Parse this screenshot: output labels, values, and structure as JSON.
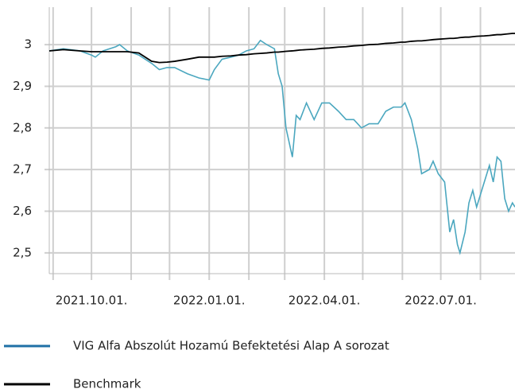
{
  "chart_data": {
    "type": "line",
    "x": [
      "2021-08-29",
      "2021-09-09",
      "2021-09-22",
      "2021-10-01",
      "2021-10-04",
      "2021-10-10",
      "2021-10-20",
      "2021-10-23",
      "2021-10-29",
      "2021-11-07",
      "2021-11-17",
      "2021-11-23",
      "2021-11-29",
      "2021-12-05",
      "2021-12-15",
      "2021-12-24",
      "2022-01-01",
      "2022-01-05",
      "2022-01-11",
      "2022-01-18",
      "2022-01-24",
      "2022-01-30",
      "2022-02-05",
      "2022-02-10",
      "2022-02-15",
      "2022-02-21",
      "2022-02-24",
      "2022-02-27",
      "2022-03-02",
      "2022-03-07",
      "2022-03-10",
      "2022-03-13",
      "2022-03-18",
      "2022-03-24",
      "2022-03-30",
      "2022-04-05",
      "2022-04-12",
      "2022-04-18",
      "2022-04-24",
      "2022-04-30",
      "2022-05-06",
      "2022-05-13",
      "2022-05-19",
      "2022-05-25",
      "2022-05-31",
      "2022-06-03",
      "2022-06-08",
      "2022-06-13",
      "2022-06-16",
      "2022-06-22",
      "2022-06-25",
      "2022-06-29",
      "2022-07-04",
      "2022-07-08",
      "2022-07-11",
      "2022-07-14",
      "2022-07-16",
      "2022-07-20",
      "2022-07-23",
      "2022-07-26",
      "2022-07-29",
      "2022-08-04",
      "2022-08-08",
      "2022-08-11",
      "2022-08-14",
      "2022-08-17",
      "2022-08-20",
      "2022-08-23",
      "2022-08-26",
      "2022-08-28"
    ],
    "series": [
      {
        "name": "VIG Alfa Abszolút Hozamú Befektetési Alap A sorozat",
        "color": "#4ba7bf",
        "values": [
          2.985,
          2.99,
          2.985,
          2.975,
          2.97,
          2.985,
          2.995,
          3.0,
          2.985,
          2.975,
          2.955,
          2.94,
          2.945,
          2.945,
          2.93,
          2.92,
          2.915,
          2.94,
          2.965,
          2.97,
          2.975,
          2.985,
          2.99,
          3.01,
          3.0,
          2.99,
          2.93,
          2.9,
          2.8,
          2.73,
          2.83,
          2.82,
          2.86,
          2.82,
          2.86,
          2.86,
          2.84,
          2.82,
          2.82,
          2.8,
          2.81,
          2.81,
          2.84,
          2.85,
          2.85,
          2.86,
          2.82,
          2.75,
          2.69,
          2.7,
          2.72,
          2.69,
          2.67,
          2.55,
          2.58,
          2.52,
          2.5,
          2.55,
          2.62,
          2.65,
          2.61,
          2.67,
          2.71,
          2.67,
          2.73,
          2.72,
          2.63,
          2.6,
          2.62,
          2.61
        ]
      },
      {
        "name": "Benchmark",
        "color": "#000000",
        "values": [
          2.985,
          2.988,
          2.985,
          2.983,
          2.983,
          2.983,
          2.983,
          2.983,
          2.983,
          2.98,
          2.96,
          2.957,
          2.958,
          2.96,
          2.965,
          2.97,
          2.97,
          2.97,
          2.972,
          2.973,
          2.975,
          2.976,
          2.978,
          2.979,
          2.98,
          2.982,
          2.982,
          2.983,
          2.984,
          2.985,
          2.986,
          2.987,
          2.988,
          2.989,
          2.991,
          2.992,
          2.994,
          2.995,
          2.997,
          2.998,
          3.0,
          3.001,
          3.003,
          3.004,
          3.006,
          3.006,
          3.008,
          3.009,
          3.009,
          3.011,
          3.012,
          3.013,
          3.014,
          3.015,
          3.015,
          3.016,
          3.017,
          3.018,
          3.018,
          3.019,
          3.02,
          3.021,
          3.022,
          3.023,
          3.024,
          3.024,
          3.025,
          3.026,
          3.027,
          3.027
        ]
      }
    ],
    "xlim": [
      "2021-08-29",
      "2022-08-28"
    ],
    "xticks": [
      {
        "value": "2021-10-01",
        "label": "2021.10.01."
      },
      {
        "value": "2022-01-01",
        "label": "2022.01.01."
      },
      {
        "value": "2022-04-01",
        "label": "2022.04.01."
      },
      {
        "value": "2022-07-01",
        "label": "2022.07.01."
      }
    ],
    "x_minor_grid": "month",
    "ylim": [
      2.45,
      3.09
    ],
    "yticks": [
      {
        "value": 2.5,
        "label": "2,5"
      },
      {
        "value": 2.6,
        "label": "2,6"
      },
      {
        "value": 2.7,
        "label": "2,7"
      },
      {
        "value": 2.8,
        "label": "2,8"
      },
      {
        "value": 2.9,
        "label": "2,9"
      },
      3
    ],
    "grid": true,
    "legend": "bottom"
  }
}
